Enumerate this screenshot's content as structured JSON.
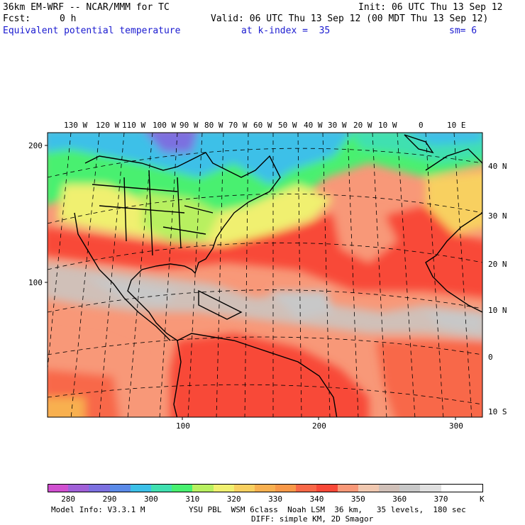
{
  "header": {
    "model_title": "36km EM-WRF -- NCAR/MMM for TC",
    "init": "Init: 06 UTC Thu 13 Sep 12",
    "fcst_label": "Fcst:",
    "fcst_value": "0 h",
    "valid": "Valid: 06 UTC Thu 13 Sep 12 (00 MDT Thu 13 Sep 12)",
    "field": "Equivalent potential temperature",
    "level": "at k-index =  35",
    "smoothing": "sm= 6"
  },
  "top_longitudes": [
    "130 W",
    "120 W",
    "110 W",
    "100 W",
    "90 W",
    "80 W",
    "70 W",
    "60 W",
    "50 W",
    "40 W",
    "30 W",
    "20 W",
    "10 W",
    "0",
    "10 E"
  ],
  "right_latitudes": [
    "40 N",
    "30 N",
    "20 N",
    "10 N",
    "0",
    "10 S"
  ],
  "left_grid_ticks": [
    "200",
    "100"
  ],
  "bottom_grid_ticks": [
    "100",
    "200",
    "300"
  ],
  "colorbar": {
    "colors": [
      "#d050d0",
      "#a060d8",
      "#7c70e0",
      "#5a8ae8",
      "#3cc0e8",
      "#40e0b0",
      "#48f070",
      "#b8f060",
      "#f0f070",
      "#f8d060",
      "#f8b050",
      "#f89848",
      "#f86848",
      "#f84838",
      "#f89878",
      "#f0c8b0",
      "#d0c0b8",
      "#c8c8c8",
      "#e0e0e0",
      "#ffffff",
      "#ffffff"
    ],
    "labels": [
      "280",
      "290",
      "300",
      "310",
      "320",
      "330",
      "340",
      "350",
      "360",
      "370"
    ],
    "unit": "K"
  },
  "footer": {
    "model_info": "Model Info: V3.3.1 M",
    "physics": "YSU PBL  WSM 6class  Noah LSM  36 km,   35 levels,  180 sec",
    "diffusion": "DIFF: simple KM, 2D Smagor"
  }
}
